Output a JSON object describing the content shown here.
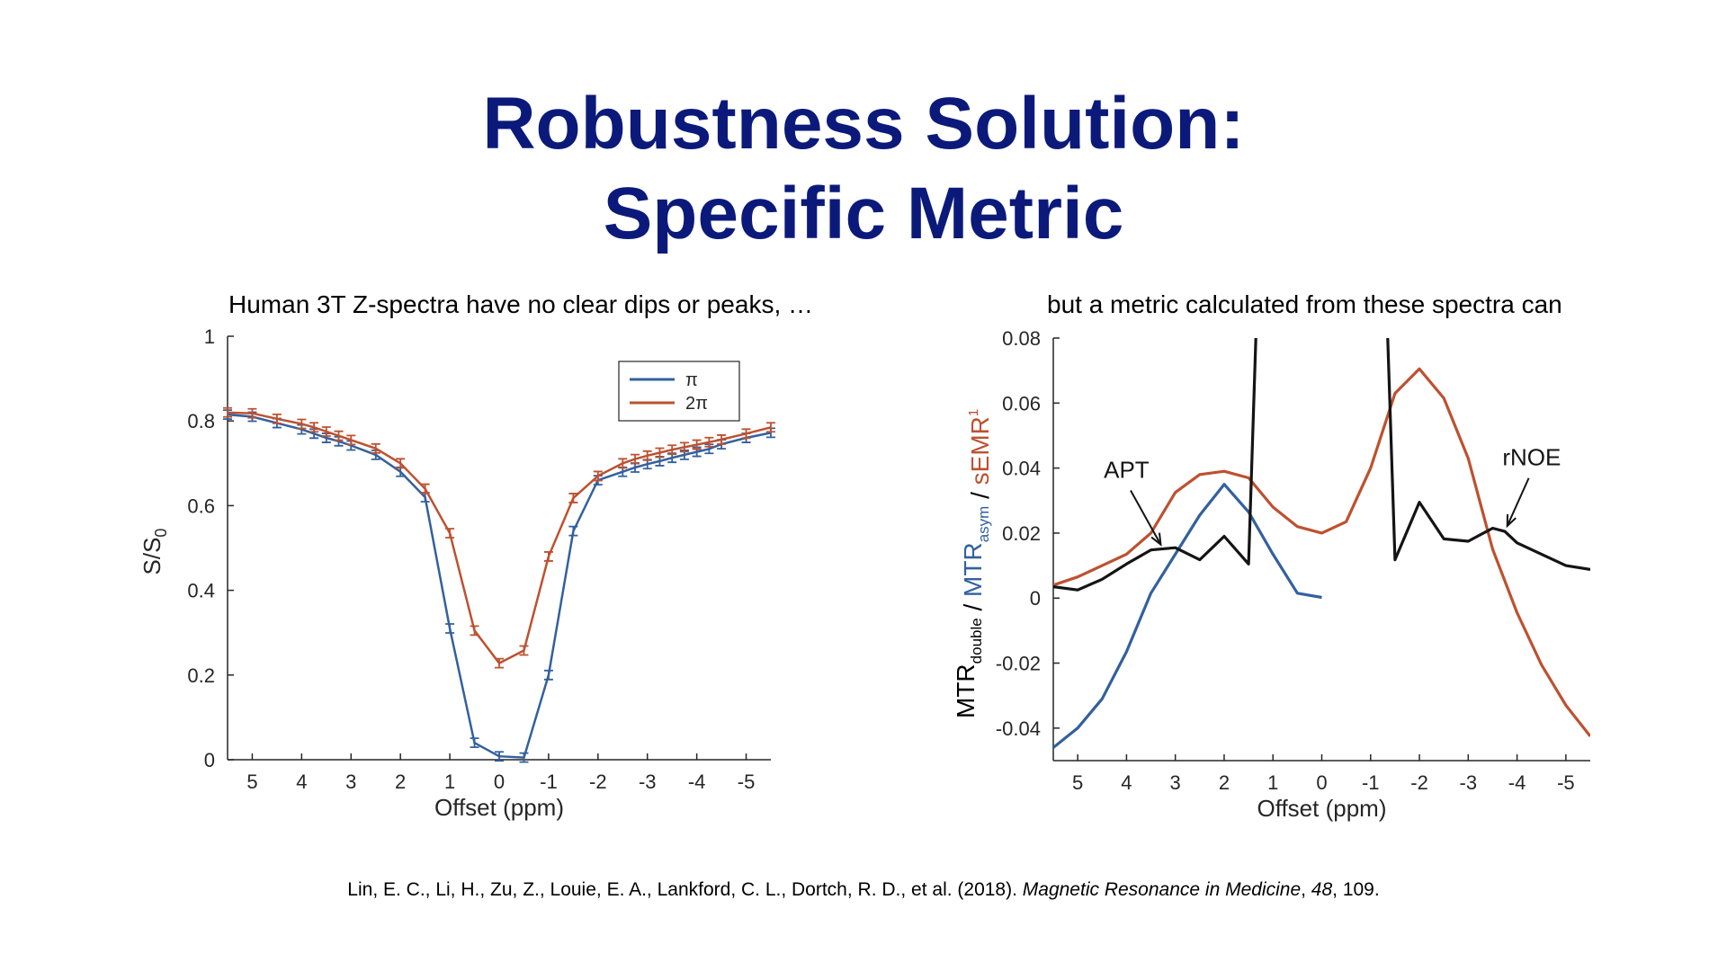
{
  "title": {
    "line1": "Robustness Solution:",
    "line2": "Specific Metric"
  },
  "captions": {
    "left": "Human 3T Z-spectra have no clear dips or peaks, …",
    "right": "but a metric calculated from these spectra can"
  },
  "colors": {
    "title": "#0b1a7a",
    "blue": "#33609e",
    "orange": "#bd5130",
    "black": "#141414"
  },
  "chart_data": [
    {
      "type": "line",
      "title": "",
      "xlabel": "Offset (ppm)",
      "ylabel_main": "S/S",
      "ylabel_sub": "0",
      "xlim": [
        5.5,
        -5.5
      ],
      "ylim": [
        0,
        1
      ],
      "xticks": [
        5,
        4,
        3,
        2,
        1,
        0,
        -1,
        -2,
        -3,
        -4,
        -5
      ],
      "xtick_labels": [
        "5",
        "4",
        "3",
        "2",
        "1",
        "0",
        "-1",
        "-2",
        "-3",
        "-4",
        "-5"
      ],
      "yticks": [
        0,
        0.2,
        0.4,
        0.6,
        0.8,
        1
      ],
      "ytick_labels": [
        "0",
        "0.2",
        "0.4",
        "0.6",
        "0.8",
        "1"
      ],
      "legend_position": "top-right",
      "series": [
        {
          "name": "π",
          "color": "#33609e",
          "error_bars": true,
          "points": [
            [
              5.5,
              0.815
            ],
            [
              5,
              0.81
            ],
            [
              4.5,
              0.795
            ],
            [
              4,
              0.78
            ],
            [
              3.75,
              0.77
            ],
            [
              3.5,
              0.76
            ],
            [
              3.25,
              0.752
            ],
            [
              3,
              0.742
            ],
            [
              2.5,
              0.72
            ],
            [
              2,
              0.68
            ],
            [
              1.5,
              0.62
            ],
            [
              1,
              0.31
            ],
            [
              0.5,
              0.04
            ],
            [
              0,
              0.008
            ],
            [
              -0.5,
              0.005
            ],
            [
              -1,
              0.2
            ],
            [
              -1.5,
              0.54
            ],
            [
              -2,
              0.66
            ],
            [
              -2.5,
              0.68
            ],
            [
              -2.75,
              0.69
            ],
            [
              -3,
              0.698
            ],
            [
              -3.25,
              0.705
            ],
            [
              -3.5,
              0.713
            ],
            [
              -3.75,
              0.72
            ],
            [
              -4,
              0.727
            ],
            [
              -4.25,
              0.734
            ],
            [
              -4.5,
              0.745
            ],
            [
              -5,
              0.76
            ],
            [
              -5.5,
              0.772
            ]
          ]
        },
        {
          "name": "2π",
          "color": "#bd5130",
          "error_bars": true,
          "points": [
            [
              5.5,
              0.82
            ],
            [
              5,
              0.818
            ],
            [
              4.5,
              0.805
            ],
            [
              4,
              0.793
            ],
            [
              3.75,
              0.785
            ],
            [
              3.5,
              0.775
            ],
            [
              3.25,
              0.765
            ],
            [
              3,
              0.755
            ],
            [
              2.5,
              0.735
            ],
            [
              2,
              0.7
            ],
            [
              1.5,
              0.64
            ],
            [
              1,
              0.535
            ],
            [
              0.5,
              0.305
            ],
            [
              0,
              0.228
            ],
            [
              -0.5,
              0.258
            ],
            [
              -1,
              0.48
            ],
            [
              -1.5,
              0.618
            ],
            [
              -2,
              0.67
            ],
            [
              -2.5,
              0.7
            ],
            [
              -2.75,
              0.71
            ],
            [
              -3,
              0.718
            ],
            [
              -3.25,
              0.725
            ],
            [
              -3.5,
              0.732
            ],
            [
              -3.75,
              0.738
            ],
            [
              -4,
              0.744
            ],
            [
              -4.25,
              0.75
            ],
            [
              -4.5,
              0.756
            ],
            [
              -5,
              0.77
            ],
            [
              -5.5,
              0.785
            ]
          ]
        }
      ]
    },
    {
      "type": "line",
      "title": "",
      "xlabel": "Offset (ppm)",
      "ylabel_parts": [
        {
          "text": "MTR",
          "sub": "double",
          "color": "#000000"
        },
        {
          "text": " / ",
          "sub": "",
          "color": "#000000"
        },
        {
          "text": "MTR",
          "sub": "asym",
          "color": "#33609e"
        },
        {
          "text": " / ",
          "sub": "",
          "color": "#000000"
        },
        {
          "text": "sEMR",
          "sup": "1",
          "sub": "",
          "color": "#bd5130"
        }
      ],
      "xlim": [
        5.5,
        -5.5
      ],
      "ylim": [
        -0.05,
        0.08
      ],
      "xticks": [
        5,
        4,
        3,
        2,
        1,
        0,
        -1,
        -2,
        -3,
        -4,
        -5
      ],
      "xtick_labels": [
        "5",
        "4",
        "3",
        "2",
        "1",
        "0",
        "-1",
        "-2",
        "-3",
        "-4",
        "-5"
      ],
      "yticks": [
        -0.04,
        -0.02,
        0,
        0.02,
        0.04,
        0.06,
        0.08
      ],
      "ytick_labels": [
        "-0.04",
        "-0.02",
        "0",
        "0.02",
        "0.04",
        "0.06",
        "0.08"
      ],
      "series": [
        {
          "name": "sEMR",
          "color": "#bd5130",
          "points": [
            [
              5.5,
              0.004
            ],
            [
              5,
              0.0065
            ],
            [
              4.5,
              0.01
            ],
            [
              4,
              0.0135
            ],
            [
              3.5,
              0.02
            ],
            [
              3,
              0.0325
            ],
            [
              2.5,
              0.038
            ],
            [
              2,
              0.039
            ],
            [
              1.5,
              0.037
            ],
            [
              1,
              0.028
            ],
            [
              0.5,
              0.022
            ],
            [
              0,
              0.02
            ],
            [
              -0.5,
              0.0235
            ],
            [
              -1,
              0.04
            ],
            [
              -1.5,
              0.063
            ],
            [
              -2,
              0.0705
            ],
            [
              -2.5,
              0.0615
            ],
            [
              -3,
              0.043
            ],
            [
              -3.5,
              0.015
            ],
            [
              -4,
              -0.0045
            ],
            [
              -4.5,
              -0.0205
            ],
            [
              -5,
              -0.033
            ],
            [
              -5.5,
              -0.0425
            ]
          ]
        },
        {
          "name": "MTRasym",
          "color": "#33609e",
          "points": [
            [
              5.5,
              -0.046
            ],
            [
              5,
              -0.04
            ],
            [
              4.5,
              -0.031
            ],
            [
              4,
              -0.0165
            ],
            [
              3.5,
              0.0015
            ],
            [
              3,
              0.0135
            ],
            [
              2.5,
              0.0255
            ],
            [
              2,
              0.035
            ],
            [
              1.5,
              0.0265
            ],
            [
              1,
              0.0135
            ],
            [
              0.5,
              0.0015
            ],
            [
              0,
              0.0002
            ]
          ]
        },
        {
          "name": "MTRdouble",
          "color": "#141414",
          "segments": [
            [
              [
                5.5,
                0.0035
              ],
              [
                5,
                0.0025
              ],
              [
                4.5,
                0.0058
              ],
              [
                4,
                0.0105
              ],
              [
                3.5,
                0.0148
              ],
              [
                3,
                0.0155
              ],
              [
                2.5,
                0.0118
              ],
              [
                2,
                0.019
              ],
              [
                1.5,
                0.0105
              ],
              [
                1.35,
                0.08
              ]
            ],
            [
              [
                -1.35,
                0.08
              ],
              [
                -1.5,
                0.0118
              ],
              [
                -2,
                0.0295
              ],
              [
                -2.5,
                0.0182
              ],
              [
                -3,
                0.0175
              ],
              [
                -3.5,
                0.0215
              ],
              [
                -3.75,
                0.0205
              ],
              [
                -4,
                0.017
              ],
              [
                -4.5,
                0.0135
              ],
              [
                -5,
                0.01
              ],
              [
                -5.5,
                0.0088
              ]
            ]
          ]
        }
      ],
      "annotations": [
        {
          "text": "APT",
          "x": 4.0,
          "y": 0.037,
          "arrow_to": [
            3.3,
            0.0165
          ]
        },
        {
          "text": "rNOE",
          "x": -4.3,
          "y": 0.0408,
          "arrow_to": [
            -3.8,
            0.0222
          ]
        }
      ]
    }
  ],
  "citation": {
    "prefix": "Lin, E. C., Li, H., Zu, Z., Louie, E. A., Lankford, C. L., Dortch, R. D., et al. (2018). ",
    "journal": "Magnetic Resonance in Medicine",
    "sep": ", ",
    "volume": "48",
    "suffix": ", 109."
  }
}
